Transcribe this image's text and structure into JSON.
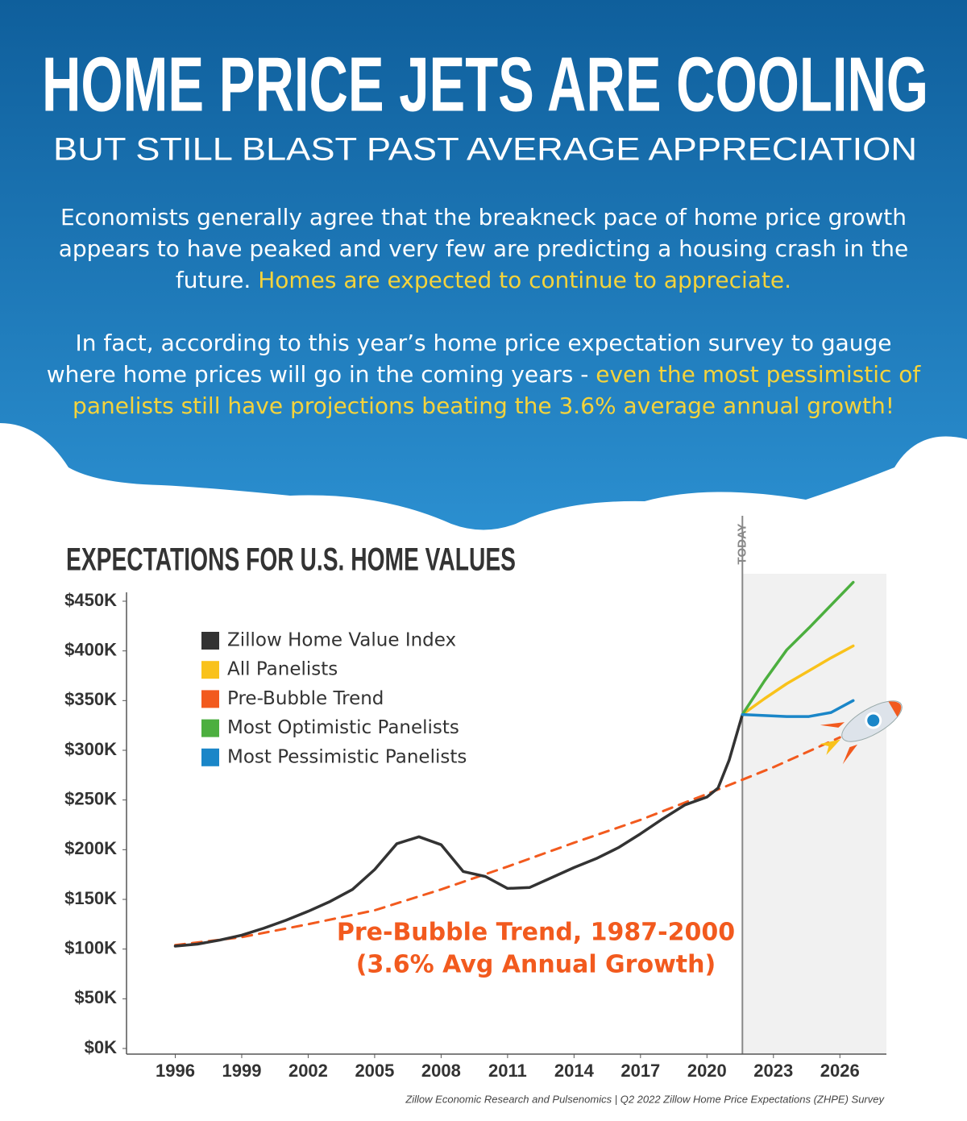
{
  "header": {
    "title": "HOME PRICE JETS ARE COOLING",
    "subtitle": "BUT STILL BLAST PAST AVERAGE APPRECIATION"
  },
  "paragraphs": [
    {
      "text": "Economists generally agree that the breakneck pace of home price growth appears to have peaked and very few are predicting a housing crash in the future.",
      "highlight": "Homes are expected to continue to appreciate."
    },
    {
      "text": "In fact, according to this year’s home price expectation survey to gauge where home prices will go in the coming years -",
      "highlight": "even the most pessimistic of panelists still have projections beating the 3.6% average annual growth!"
    }
  ],
  "chart_data": {
    "type": "line",
    "title": "EXPECTATIONS FOR U.S. HOME VALUES",
    "xlim": [
      1993.8,
      2028.1
    ],
    "xticks": [
      1996,
      1999,
      2002,
      2005,
      2008,
      2011,
      2014,
      2017,
      2020,
      2023,
      2026
    ],
    "ylim": [
      0,
      450000
    ],
    "yticks": [
      {
        "value": 0,
        "label": "$0K"
      },
      {
        "value": 50000,
        "label": "$50K"
      },
      {
        "value": 100000,
        "label": "$100K"
      },
      {
        "value": 150000,
        "label": "$150K"
      },
      {
        "value": 200000,
        "label": "$200K"
      },
      {
        "value": 250000,
        "label": "$250K"
      },
      {
        "value": 300000,
        "label": "$300K"
      },
      {
        "value": 350000,
        "label": "$350K"
      },
      {
        "value": 400000,
        "label": "$400K"
      },
      {
        "value": 450000,
        "label": "$450K"
      }
    ],
    "series": [
      {
        "name": "Zillow Home Value Index",
        "color": "#333333",
        "style": "solid",
        "x": [
          1996,
          1997,
          1998,
          1999,
          2000,
          2001,
          2002,
          2003,
          2004,
          2005,
          2006,
          2007,
          2008,
          2009,
          2010,
          2011,
          2012,
          2013,
          2014,
          2015,
          2016,
          2017,
          2018,
          2019,
          2020,
          2020.5,
          2021,
          2021.6
        ],
        "values": [
          103000,
          105000,
          109000,
          114000,
          121000,
          129000,
          138000,
          148000,
          160000,
          180000,
          206000,
          213000,
          205000,
          178000,
          173000,
          161000,
          162000,
          172000,
          182000,
          191000,
          202000,
          216000,
          231000,
          245000,
          253000,
          262000,
          290000,
          336000
        ]
      },
      {
        "name": "All Panelists",
        "color": "#f9c21b",
        "style": "solid",
        "x": [
          2021.6,
          2022.6,
          2023.6,
          2024.6,
          2025.6,
          2026.6
        ],
        "values": [
          336000,
          352000,
          367000,
          380000,
          393000,
          405000
        ]
      },
      {
        "name": "Pre-Bubble Trend",
        "color": "#f25a1e",
        "style": "dashed",
        "x": [
          1996,
          1999,
          2002,
          2005,
          2008,
          2011,
          2014,
          2017,
          2020,
          2023,
          2026
        ],
        "values": [
          104000,
          112000,
          125000,
          139000,
          160000,
          183000,
          207000,
          230000,
          256000,
          283000,
          313000
        ]
      },
      {
        "name": "Most Optimistic Panelists",
        "color": "#4caf3f",
        "style": "solid",
        "x": [
          2021.6,
          2022.6,
          2023.6,
          2024.6,
          2025.6,
          2026.6
        ],
        "values": [
          336000,
          370000,
          401000,
          423000,
          446000,
          469000
        ]
      },
      {
        "name": "Most Pessimistic Panelists",
        "color": "#1a86c8",
        "style": "solid",
        "x": [
          2021.6,
          2022.6,
          2023.6,
          2024.6,
          2025.6,
          2026.6
        ],
        "values": [
          336000,
          335000,
          334000,
          334000,
          338000,
          350000
        ]
      }
    ],
    "today": {
      "label": "TODAY",
      "x": 2021.6
    },
    "annotation": [
      "Pre-Bubble Trend, 1987-2000",
      "(3.6% Avg Annual Growth)"
    ],
    "source": "Zillow Economic Research and Pulsenomics | Q2 2022 Zillow Home Price Expectations (ZHPE) Survey"
  }
}
